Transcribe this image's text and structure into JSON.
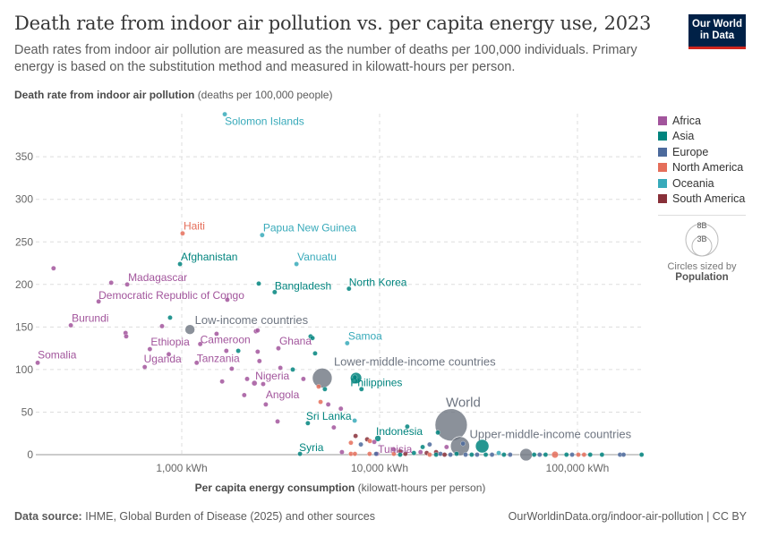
{
  "title": "Death rate from indoor air pollution vs. per capita energy use, 2023",
  "subtitle": "Death rates from indoor air pollution are measured as the number of deaths per 100,000 individuals. Primary energy is based on the substitution method and measured in kilowatt-hours per person.",
  "logo": {
    "line1": "Our World",
    "line2": "in Data"
  },
  "footer": {
    "source_label": "Data source:",
    "source_text": "IHME, Global Burden of Disease (2025) and other sources",
    "url": "OurWorldinData.org/indoor-air-pollution | CC BY"
  },
  "legend": {
    "items": [
      {
        "label": "Africa",
        "color": "#a2559c"
      },
      {
        "label": "Asia",
        "color": "#00847e"
      },
      {
        "label": "Europe",
        "color": "#4c6a9c"
      },
      {
        "label": "North America",
        "color": "#e56e5a"
      },
      {
        "label": "Oceania",
        "color": "#38aaba"
      },
      {
        "label": "South America",
        "color": "#883039"
      }
    ],
    "size_large": "8B",
    "size_small": "3B",
    "size_caption": "Circles sized by",
    "size_variable": "Population"
  },
  "chart_data": {
    "type": "scatter",
    "title": "Death rate from indoor air pollution vs. per capita energy use, 2023",
    "ylabel_bold": "Death rate from indoor air pollution",
    "ylabel_unit": "(deaths per 100,000 people)",
    "xlabel_bold": "Per capita energy consumption",
    "xlabel_unit": "(kilowatt-hours per person)",
    "x_scale": "log",
    "xlim": [
      180,
      215000
    ],
    "ylim": [
      0,
      400
    ],
    "x_ticks": [
      {
        "value": 1000,
        "label": "1,000 kWh"
      },
      {
        "value": 10000,
        "label": "10,000 kWh"
      },
      {
        "value": 100000,
        "label": "100,000 kWh"
      }
    ],
    "y_ticks": [
      0,
      50,
      100,
      150,
      200,
      250,
      300,
      350
    ],
    "grid": true,
    "legend_position": "right",
    "aggregate_color": "#6e7581",
    "points": [
      {
        "label": "Solomon Islands",
        "group": "Oceania",
        "x": 1650,
        "y": 400
      },
      {
        "label": "Haiti",
        "group": "North America",
        "x": 1010,
        "y": 260
      },
      {
        "label": "Papua New Guinea",
        "group": "Oceania",
        "x": 2550,
        "y": 258
      },
      {
        "label": "Afghanistan",
        "group": "Asia",
        "x": 980,
        "y": 224,
        "pop": 0.04
      },
      {
        "label": "Vanuatu",
        "group": "Oceania",
        "x": 3800,
        "y": 224
      },
      {
        "label": "Madagascar",
        "group": "Africa",
        "x": 530,
        "y": 200
      },
      {
        "label": "Bangladesh",
        "group": "Asia",
        "x": 2950,
        "y": 191,
        "pop": 0.17
      },
      {
        "label": "North Korea",
        "group": "Asia",
        "x": 7000,
        "y": 195
      },
      {
        "label": "Democratic Republic of Congo",
        "group": "Africa",
        "x": 380,
        "y": 180,
        "pop": 0.1
      },
      {
        "label": "Burundi",
        "group": "Africa",
        "x": 275,
        "y": 152
      },
      {
        "label": "Low-income countries",
        "group": "aggregate",
        "x": 1100,
        "y": 147,
        "pop": 0.75
      },
      {
        "label": "Ethiopia",
        "group": "Africa",
        "x": 690,
        "y": 124,
        "pop": 0.12
      },
      {
        "label": "Cameroon",
        "group": "Africa",
        "x": 1240,
        "y": 130
      },
      {
        "label": "Ghana",
        "group": "Africa",
        "x": 3080,
        "y": 125
      },
      {
        "label": "Samoa",
        "group": "Oceania",
        "x": 6860,
        "y": 131
      },
      {
        "label": "Somalia",
        "group": "Africa",
        "x": 187,
        "y": 108
      },
      {
        "label": "Uganda",
        "group": "Africa",
        "x": 650,
        "y": 103
      },
      {
        "label": "Tanzania",
        "group": "Africa",
        "x": 1190,
        "y": 108
      },
      {
        "label": "Lower-middle-income countries",
        "group": "aggregate",
        "x": 5130,
        "y": 90,
        "pop": 3.0
      },
      {
        "label": "Philippines",
        "group": "Asia",
        "x": 7500,
        "y": 91,
        "pop": 0.12
      },
      {
        "label": "Nigeria",
        "group": "Africa",
        "x": 2330,
        "y": 84,
        "pop": 0.22
      },
      {
        "label": "Angola",
        "group": "Africa",
        "x": 2660,
        "y": 59
      },
      {
        "label": "Sri Lanka",
        "group": "Asia",
        "x": 4340,
        "y": 37
      },
      {
        "label": "Indonesia",
        "group": "Asia",
        "x": 9800,
        "y": 19,
        "pop": 0.28
      },
      {
        "label": "Tunisia",
        "group": "Africa",
        "x": 9700,
        "y": 1
      },
      {
        "label": "Syria",
        "group": "Asia",
        "x": 3960,
        "y": 1
      },
      {
        "label": "World",
        "group": "aggregate",
        "x": 23000,
        "y": 35,
        "pop": 8.0
      },
      {
        "label": "Upper-middle-income countries",
        "group": "aggregate",
        "x": 25500,
        "y": 10,
        "pop": 2.8
      },
      {
        "group": "aggregate",
        "x": 55000,
        "y": 0,
        "pop": 1.2
      },
      {
        "group": "Asia",
        "x": 33000,
        "y": 10,
        "pop": 1.4
      },
      {
        "group": "Asia",
        "x": 7600,
        "y": 90,
        "pop": 1.0
      },
      {
        "group": "North America",
        "x": 77000,
        "y": 0,
        "pop": 0.34
      },
      {
        "group": "Africa",
        "x": 225,
        "y": 219
      },
      {
        "group": "Africa",
        "x": 440,
        "y": 202
      },
      {
        "group": "Africa",
        "x": 1700,
        "y": 182
      },
      {
        "group": "Asia",
        "x": 2450,
        "y": 201
      },
      {
        "group": "Asia",
        "x": 873,
        "y": 161
      },
      {
        "group": "Africa",
        "x": 520,
        "y": 143
      },
      {
        "group": "Africa",
        "x": 524,
        "y": 139
      },
      {
        "group": "Africa",
        "x": 795,
        "y": 151
      },
      {
        "group": "Africa",
        "x": 1500,
        "y": 142
      },
      {
        "group": "Africa",
        "x": 2370,
        "y": 145
      },
      {
        "group": "Africa",
        "x": 2420,
        "y": 146
      },
      {
        "group": "Asia",
        "x": 4480,
        "y": 139
      },
      {
        "group": "Asia",
        "x": 4580,
        "y": 137
      },
      {
        "group": "Asia",
        "x": 4720,
        "y": 119
      },
      {
        "group": "Asia",
        "x": 1930,
        "y": 122
      },
      {
        "group": "Africa",
        "x": 1680,
        "y": 122
      },
      {
        "group": "Africa",
        "x": 2420,
        "y": 121
      },
      {
        "group": "Africa",
        "x": 2470,
        "y": 110
      },
      {
        "group": "Africa",
        "x": 860,
        "y": 118
      },
      {
        "group": "Africa",
        "x": 1790,
        "y": 101
      },
      {
        "group": "Africa",
        "x": 3150,
        "y": 102
      },
      {
        "group": "Asia",
        "x": 3640,
        "y": 100,
        "pop": 0.05
      },
      {
        "group": "Africa",
        "x": 2140,
        "y": 89
      },
      {
        "group": "Africa",
        "x": 2580,
        "y": 83
      },
      {
        "group": "Africa",
        "x": 4120,
        "y": 89
      },
      {
        "group": "Africa",
        "x": 1600,
        "y": 86
      },
      {
        "group": "Africa",
        "x": 2070,
        "y": 70
      },
      {
        "group": "Africa",
        "x": 3050,
        "y": 39
      },
      {
        "group": "North America",
        "x": 4920,
        "y": 80
      },
      {
        "group": "Asia",
        "x": 5290,
        "y": 77
      },
      {
        "group": "Asia",
        "x": 8100,
        "y": 77
      },
      {
        "group": "North America",
        "x": 5030,
        "y": 62
      },
      {
        "group": "Africa",
        "x": 5500,
        "y": 59
      },
      {
        "group": "Africa",
        "x": 6370,
        "y": 54
      },
      {
        "group": "Africa",
        "x": 5870,
        "y": 32
      },
      {
        "group": "Oceania",
        "x": 7480,
        "y": 40
      },
      {
        "group": "South America",
        "x": 7560,
        "y": 22
      },
      {
        "group": "North America",
        "x": 7160,
        "y": 14
      },
      {
        "group": "Europe",
        "x": 8040,
        "y": 12
      },
      {
        "group": "South America",
        "x": 8650,
        "y": 18
      },
      {
        "group": "North America",
        "x": 8930,
        "y": 16
      },
      {
        "group": "Africa",
        "x": 9400,
        "y": 15
      },
      {
        "group": "Africa",
        "x": 6450,
        "y": 3
      },
      {
        "group": "North America",
        "x": 7160,
        "y": 1
      },
      {
        "group": "North America",
        "x": 7500,
        "y": 1
      },
      {
        "group": "North America",
        "x": 8900,
        "y": 1
      },
      {
        "group": "Asia",
        "x": 13800,
        "y": 33
      },
      {
        "group": "Asia",
        "x": 19700,
        "y": 26
      },
      {
        "group": "Europe",
        "x": 17900,
        "y": 12
      },
      {
        "group": "Asia",
        "x": 16500,
        "y": 9
      },
      {
        "group": "Africa",
        "x": 21800,
        "y": 9
      },
      {
        "group": "Europe",
        "x": 26400,
        "y": 13
      },
      {
        "group": "South America",
        "x": 12700,
        "y": 4
      },
      {
        "group": "Africa",
        "x": 11800,
        "y": 6
      },
      {
        "group": "South America",
        "x": 19300,
        "y": 3
      },
      {
        "group": "Europe",
        "x": 9600,
        "y": 1
      },
      {
        "group": "North America",
        "x": 11800,
        "y": 1
      },
      {
        "group": "Asia",
        "x": 12700,
        "y": 0
      },
      {
        "group": "South America",
        "x": 13500,
        "y": 1
      },
      {
        "group": "Asia",
        "x": 14900,
        "y": 2
      },
      {
        "group": "Africa",
        "x": 16100,
        "y": 3
      },
      {
        "group": "South America",
        "x": 17300,
        "y": 2
      },
      {
        "group": "North America",
        "x": 17900,
        "y": 0
      },
      {
        "group": "Asia",
        "x": 19300,
        "y": 0
      },
      {
        "group": "Europe",
        "x": 20300,
        "y": 1
      },
      {
        "group": "South America",
        "x": 21300,
        "y": 0
      },
      {
        "group": "Europe",
        "x": 22800,
        "y": 0
      },
      {
        "group": "Asia",
        "x": 24500,
        "y": 1
      },
      {
        "group": "Europe",
        "x": 27200,
        "y": 0
      },
      {
        "group": "Asia",
        "x": 29200,
        "y": 0
      },
      {
        "group": "Europe",
        "x": 31100,
        "y": 0
      },
      {
        "group": "Asia",
        "x": 34400,
        "y": 0
      },
      {
        "group": "Europe",
        "x": 37000,
        "y": 0
      },
      {
        "group": "Oceania",
        "x": 40000,
        "y": 2
      },
      {
        "group": "Asia",
        "x": 42500,
        "y": 0
      },
      {
        "group": "Europe",
        "x": 45700,
        "y": 0
      },
      {
        "group": "Asia",
        "x": 60400,
        "y": 0
      },
      {
        "group": "Europe",
        "x": 64400,
        "y": 0
      },
      {
        "group": "Asia",
        "x": 69000,
        "y": 0
      },
      {
        "group": "Asia",
        "x": 88000,
        "y": 0
      },
      {
        "group": "Europe",
        "x": 94000,
        "y": 0
      },
      {
        "group": "North America",
        "x": 101000,
        "y": 0
      },
      {
        "group": "North America",
        "x": 108000,
        "y": 0
      },
      {
        "group": "Asia",
        "x": 116000,
        "y": 0
      },
      {
        "group": "Asia",
        "x": 133000,
        "y": 0
      },
      {
        "group": "Europe",
        "x": 164000,
        "y": 0
      },
      {
        "group": "Europe",
        "x": 171000,
        "y": 0
      },
      {
        "group": "Asia",
        "x": 211000,
        "y": 0
      }
    ]
  }
}
